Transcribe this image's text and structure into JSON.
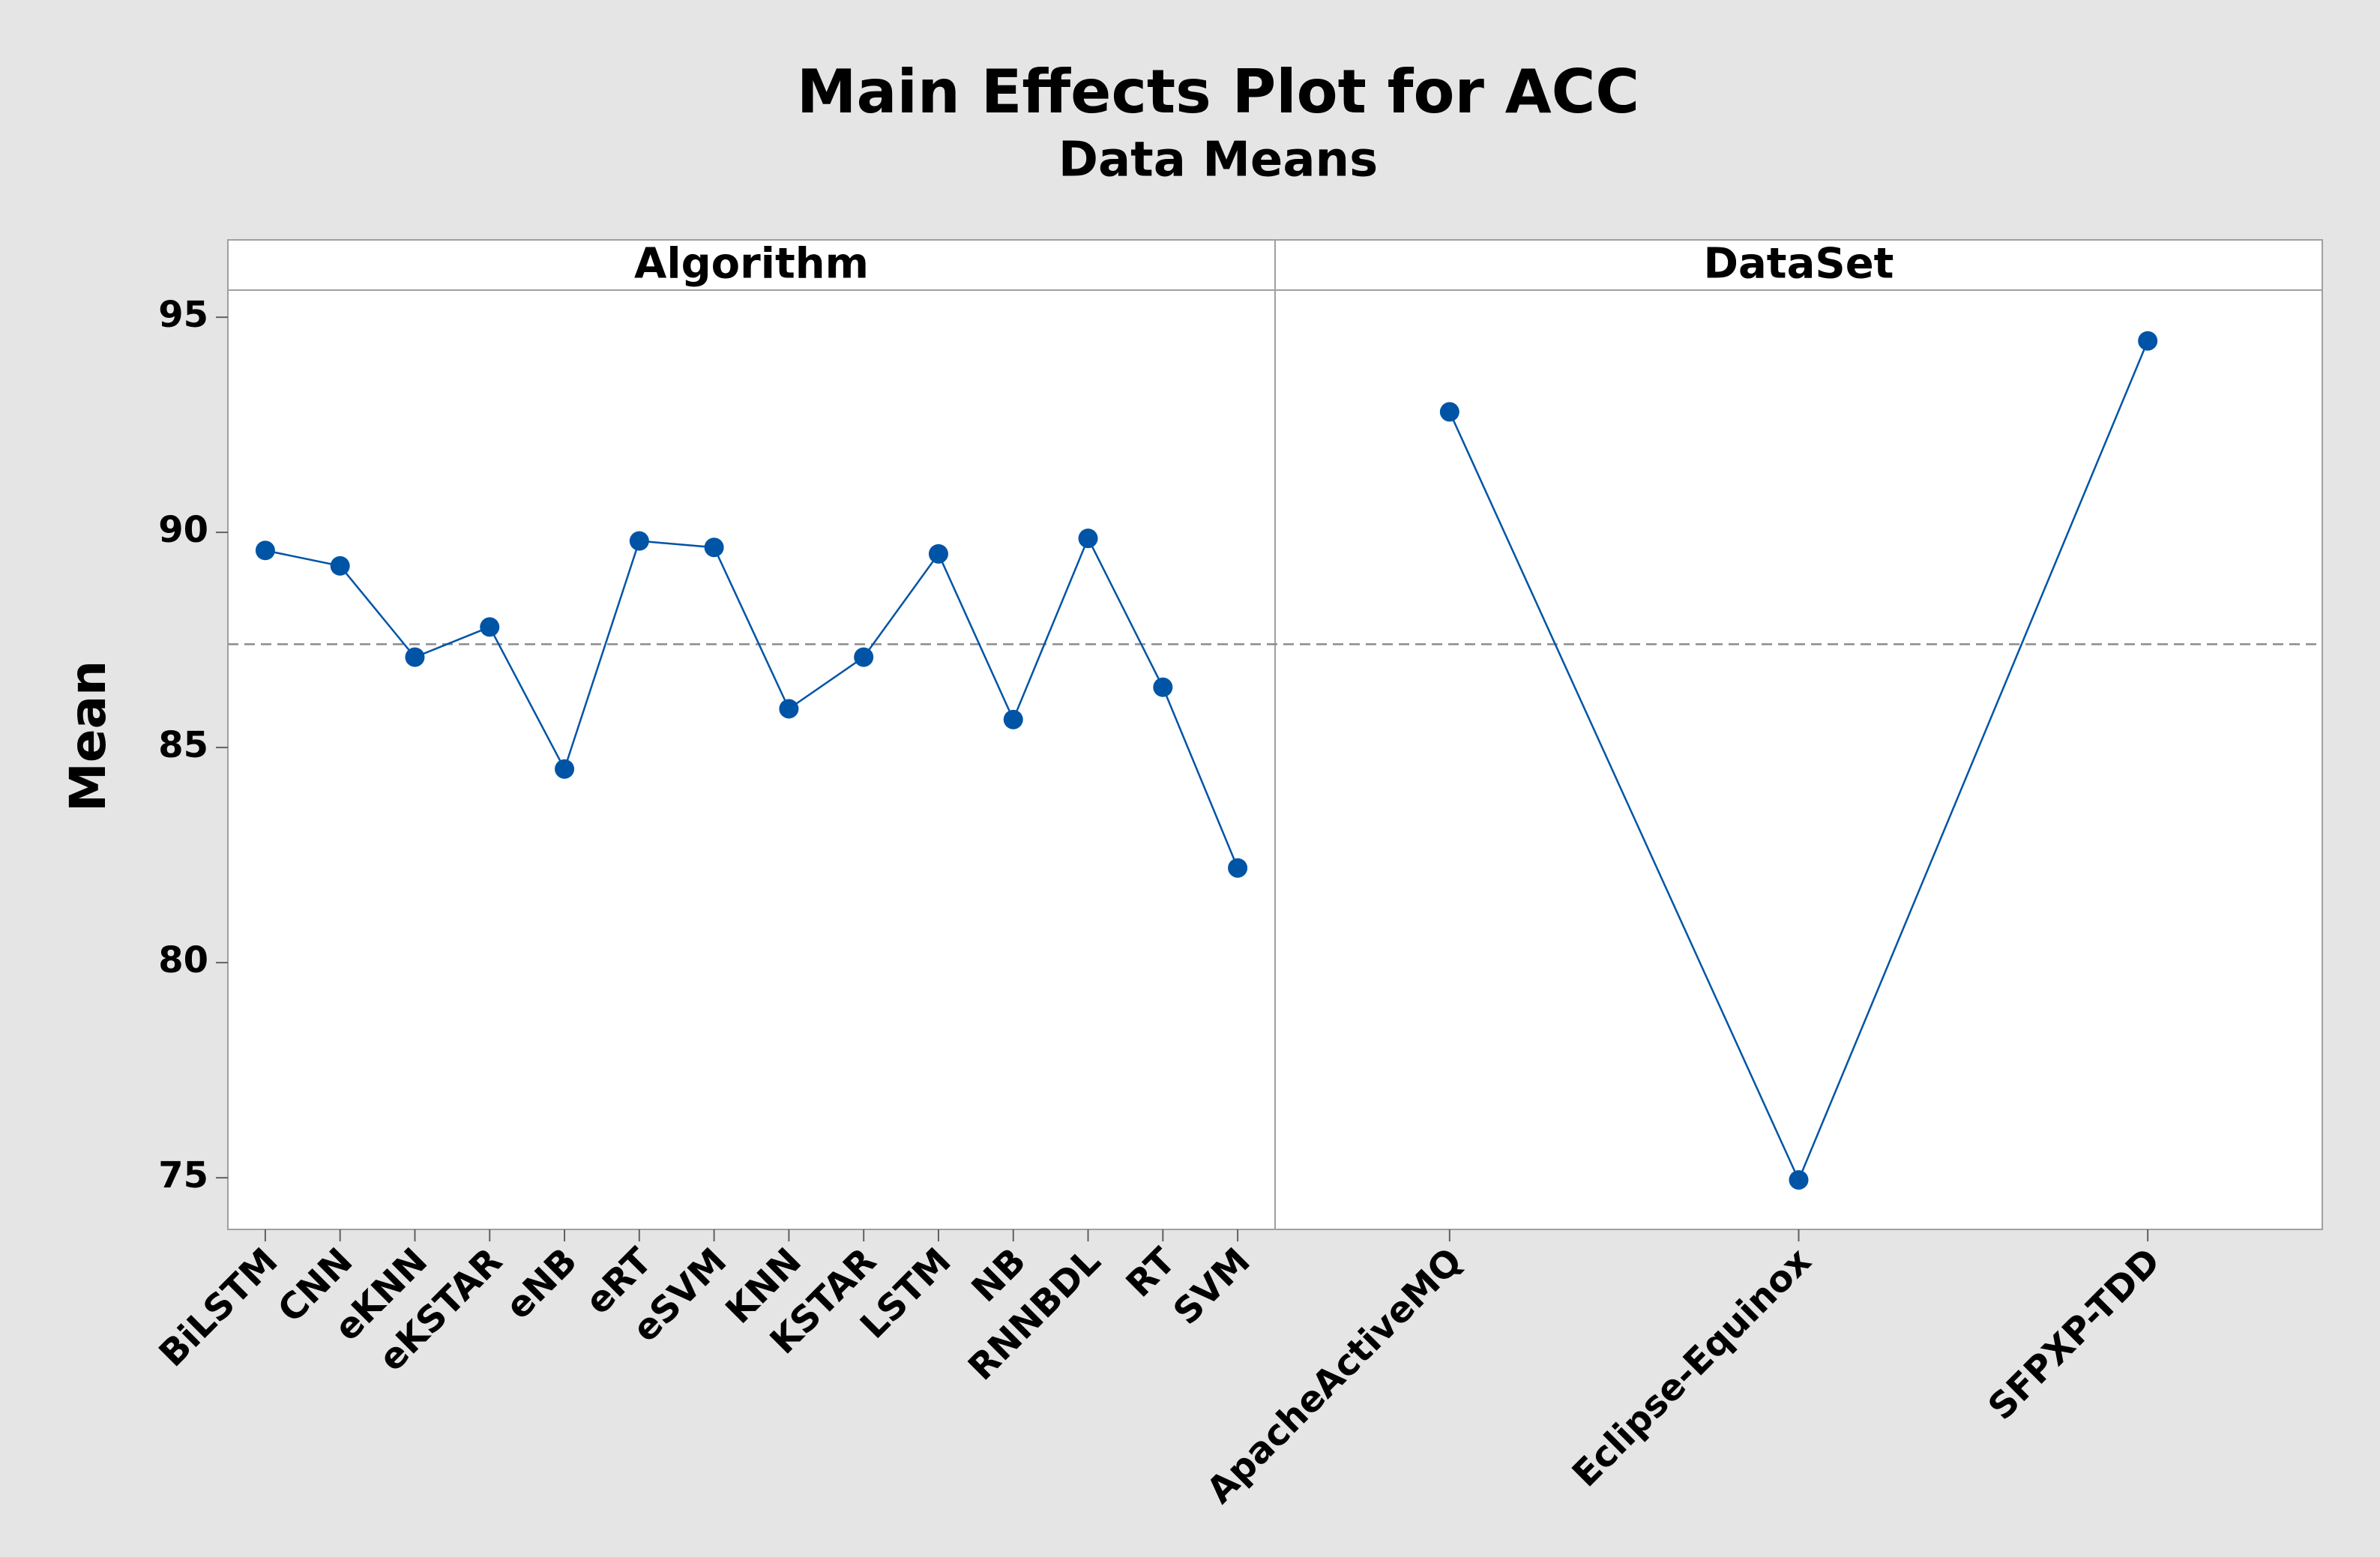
{
  "chart_data": {
    "type": "line",
    "title": "Main Effects Plot for ACC",
    "subtitle": "Data Means",
    "y_label": "Mean",
    "ylim": [
      73.8,
      95.63
    ],
    "yticks": [
      75,
      80,
      85,
      90,
      95
    ],
    "mean_line": 87.4,
    "color": "#0054a6",
    "panels": [
      {
        "name": "Algorithm",
        "categories": [
          "BiLSTM",
          "CNN",
          "eKNN",
          "eKSTAR",
          "eNB",
          "eRT",
          "eSVM",
          "KNN",
          "KSTAR",
          "LSTM",
          "NB",
          "RNNBDL",
          "RT",
          "SVM"
        ],
        "values": [
          89.58,
          89.22,
          87.1,
          87.8,
          84.5,
          89.8,
          89.65,
          85.9,
          87.1,
          89.5,
          85.65,
          89.86,
          86.4,
          82.2
        ]
      },
      {
        "name": "DataSet",
        "categories": [
          "ApacheActiveMQ",
          "Eclipse-Equinox",
          "SFPXP-TDD"
        ],
        "values": [
          92.8,
          74.95,
          94.45
        ]
      }
    ]
  }
}
